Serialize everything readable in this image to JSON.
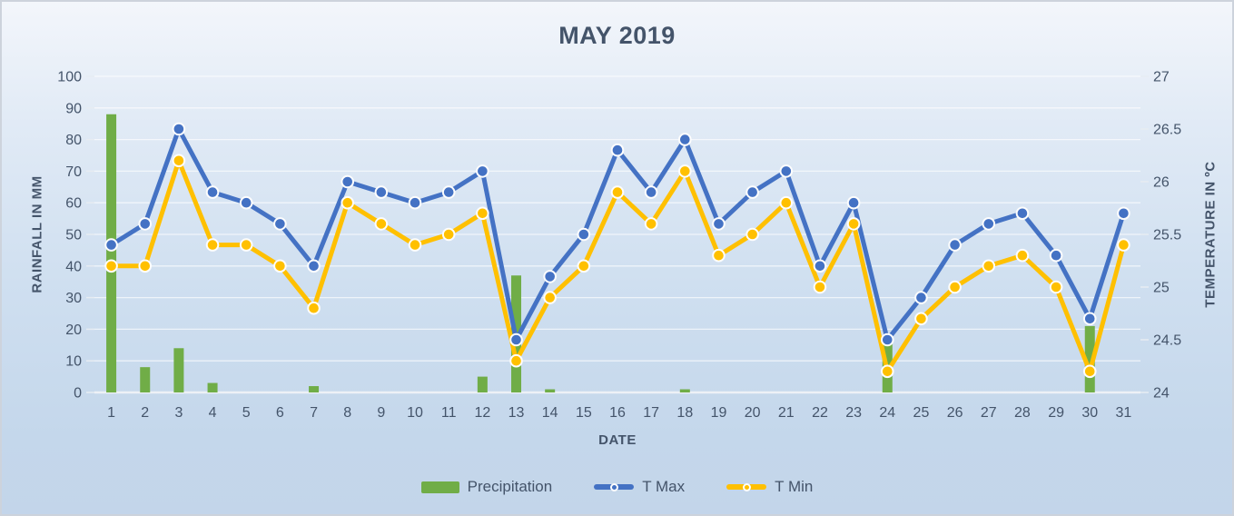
{
  "chart": {
    "title": "MAY 2019",
    "x_axis_title": "DATE",
    "y_left_axis_title": "RAINFALL IN MM",
    "y_right_axis_title": "TEMPERATURE IN ºC",
    "legend": [
      {
        "label": "Precipitation",
        "swatch": "bar",
        "color": "#70AD47"
      },
      {
        "label": "T Max",
        "swatch": "line",
        "color": "#4472C4"
      },
      {
        "label": "T Min",
        "swatch": "line",
        "color": "#FFC000"
      }
    ]
  },
  "chart_data": {
    "type": "combo-bar-line",
    "title": "MAY 2019",
    "xlabel": "DATE",
    "ylabel_left": "RAINFALL IN MM",
    "ylabel_right": "TEMPERATURE IN ºC",
    "grid": true,
    "legend_position": "bottom",
    "categories": [
      1,
      2,
      3,
      4,
      5,
      6,
      7,
      8,
      9,
      10,
      11,
      12,
      13,
      14,
      15,
      16,
      17,
      18,
      19,
      20,
      21,
      22,
      23,
      24,
      25,
      26,
      27,
      28,
      29,
      30,
      31
    ],
    "y_left_range": [
      0,
      100
    ],
    "y_left_ticks": [
      0,
      10,
      20,
      30,
      40,
      50,
      60,
      70,
      80,
      90,
      100
    ],
    "y_right_range": [
      24,
      27
    ],
    "y_right_ticks": [
      "24",
      "24.5",
      "25",
      "25.5",
      "26",
      "26.5",
      "27"
    ],
    "series": [
      {
        "name": "Precipitation",
        "type": "bar",
        "axis": "left",
        "color": "#70AD47",
        "values": [
          88,
          8,
          14,
          3,
          0,
          0,
          2,
          0,
          0,
          0,
          0,
          5,
          37,
          1,
          0,
          0,
          0,
          1,
          0,
          0,
          0,
          0,
          0,
          16,
          0,
          0,
          0,
          0,
          0,
          21,
          0
        ]
      },
      {
        "name": "T Max",
        "type": "line",
        "axis": "right",
        "color": "#4472C4",
        "values": [
          25.4,
          25.6,
          26.5,
          25.9,
          25.8,
          25.6,
          25.2,
          26.0,
          25.9,
          25.8,
          25.9,
          26.1,
          24.5,
          25.1,
          25.5,
          26.3,
          25.9,
          26.4,
          25.6,
          25.9,
          26.1,
          25.2,
          25.8,
          24.5,
          24.9,
          25.4,
          25.6,
          25.7,
          25.3,
          24.7,
          25.7
        ]
      },
      {
        "name": "T Min",
        "type": "line",
        "axis": "right",
        "color": "#FFC000",
        "values": [
          25.2,
          25.2,
          26.2,
          25.4,
          25.4,
          25.2,
          24.8,
          25.8,
          25.6,
          25.4,
          25.5,
          25.7,
          24.3,
          24.9,
          25.2,
          25.9,
          25.6,
          26.1,
          25.3,
          25.5,
          25.8,
          25.0,
          25.6,
          24.2,
          24.7,
          25.0,
          25.2,
          25.3,
          25.0,
          24.2,
          25.4
        ]
      }
    ],
    "style": {
      "grid_color": "rgba(255,255,255,0.65)",
      "axis_line_color": "#edf1f6",
      "tick_color": "#e7ecf2",
      "tick_label_color": "#44546A",
      "marker_border_color": "#fdfdfd"
    }
  }
}
